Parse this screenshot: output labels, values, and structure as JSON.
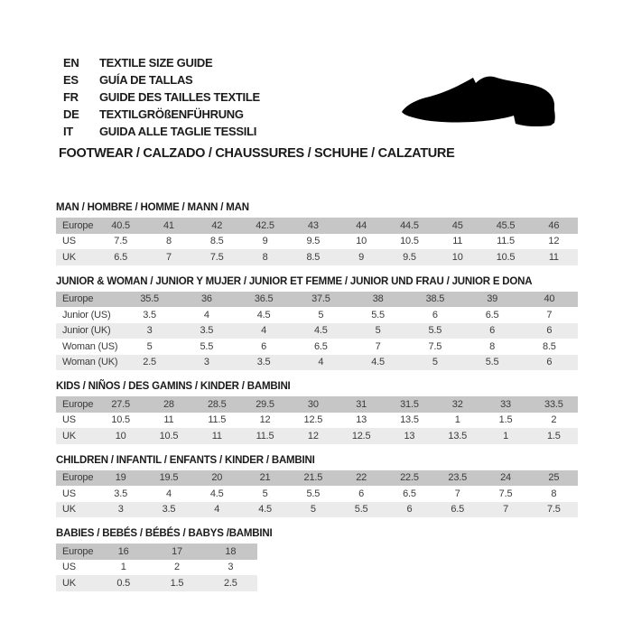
{
  "header": {
    "languages": [
      {
        "code": "EN",
        "text": "TEXTILE SIZE GUIDE"
      },
      {
        "code": "ES",
        "text": "GUÍA DE TALLAS"
      },
      {
        "code": "FR",
        "text": "GUIDE DES TAILLES TEXTILE"
      },
      {
        "code": "DE",
        "text": "TEXTILGRÖßENFÜHRUNG"
      },
      {
        "code": "IT",
        "text": "GUIDA ALLE TAGLIE TESSILI"
      }
    ],
    "category_line": "FOOTWEAR / CALZADO / CHAUSSURES / SCHUHE / CALZATURE",
    "shoe_icon": "dress-shoe-silhouette-icon"
  },
  "colors": {
    "background": "#ffffff",
    "table_header_row": "#c6c6c6",
    "table_alt_row": "#ebebeb",
    "title_text": "#1b1b1b",
    "table_text": "#3b3b3b",
    "shoe_icon": "#000000"
  },
  "tables": [
    {
      "key": "man",
      "title": "MAN / HOMBRE / HOMME / MANN / MAN",
      "rows": [
        {
          "label": "Europe",
          "values": [
            "40.5",
            "41",
            "42",
            "42.5",
            "43",
            "44",
            "44.5",
            "45",
            "45.5",
            "46"
          ]
        },
        {
          "label": "US",
          "values": [
            "7.5",
            "8",
            "8.5",
            "9",
            "9.5",
            "10",
            "10.5",
            "11",
            "11.5",
            "12"
          ]
        },
        {
          "label": "UK",
          "values": [
            "6.5",
            "7",
            "7.5",
            "8",
            "8.5",
            "9",
            "9.5",
            "10",
            "10.5",
            "11"
          ]
        }
      ]
    },
    {
      "key": "junior_woman",
      "title": "JUNIOR & WOMAN / JUNIOR Y MUJER / JUNIOR ET FEMME / JUNIOR UND FRAU / JUNIOR E DONA",
      "rows": [
        {
          "label": "Europe",
          "values": [
            "35.5",
            "36",
            "36.5",
            "37.5",
            "38",
            "38.5",
            "39",
            "40"
          ]
        },
        {
          "label": "Junior (US)",
          "values": [
            "3.5",
            "4",
            "4.5",
            "5",
            "5.5",
            "6",
            "6.5",
            "7"
          ]
        },
        {
          "label": "Junior (UK)",
          "values": [
            "3",
            "3.5",
            "4",
            "4.5",
            "5",
            "5.5",
            "6",
            "6"
          ]
        },
        {
          "label": "Woman (US)",
          "values": [
            "5",
            "5.5",
            "6",
            "6.5",
            "7",
            "7.5",
            "8",
            "8.5"
          ]
        },
        {
          "label": "Woman (UK)",
          "values": [
            "2.5",
            "3",
            "3.5",
            "4",
            "4.5",
            "5",
            "5.5",
            "6"
          ]
        }
      ]
    },
    {
      "key": "kids",
      "title": "KIDS / NIÑOS / DES GAMINS / KINDER / BAMBINI",
      "rows": [
        {
          "label": "Europe",
          "values": [
            "27.5",
            "28",
            "28.5",
            "29.5",
            "30",
            "31",
            "31.5",
            "32",
            "33",
            "33.5"
          ]
        },
        {
          "label": "US",
          "values": [
            "10.5",
            "11",
            "11.5",
            "12",
            "12.5",
            "13",
            "13.5",
            "1",
            "1.5",
            "2"
          ]
        },
        {
          "label": "UK",
          "values": [
            "10",
            "10.5",
            "11",
            "11.5",
            "12",
            "12.5",
            "13",
            "13.5",
            "1",
            "1.5"
          ]
        }
      ]
    },
    {
      "key": "children",
      "title": "CHILDREN / INFANTIL / ENFANTS / KINDER / BAMBINI",
      "rows": [
        {
          "label": "Europe",
          "values": [
            "19",
            "19.5",
            "20",
            "21",
            "21.5",
            "22",
            "22.5",
            "23.5",
            "24",
            "25"
          ]
        },
        {
          "label": "US",
          "values": [
            "3.5",
            "4",
            "4.5",
            "5",
            "5.5",
            "6",
            "6.5",
            "7",
            "7.5",
            "8"
          ]
        },
        {
          "label": "UK",
          "values": [
            "3",
            "3.5",
            "4",
            "4.5",
            "5",
            "5.5",
            "6",
            "6.5",
            "7",
            "7.5"
          ]
        }
      ]
    },
    {
      "key": "babies",
      "title": "BABIES / BEBÉS / BÉBÉS / BABYS /BAMBINI",
      "rows": [
        {
          "label": "Europe",
          "values": [
            "16",
            "17",
            "18"
          ]
        },
        {
          "label": "US",
          "values": [
            "1",
            "2",
            "3"
          ]
        },
        {
          "label": "UK",
          "values": [
            "0.5",
            "1.5",
            "2.5"
          ]
        }
      ]
    }
  ]
}
